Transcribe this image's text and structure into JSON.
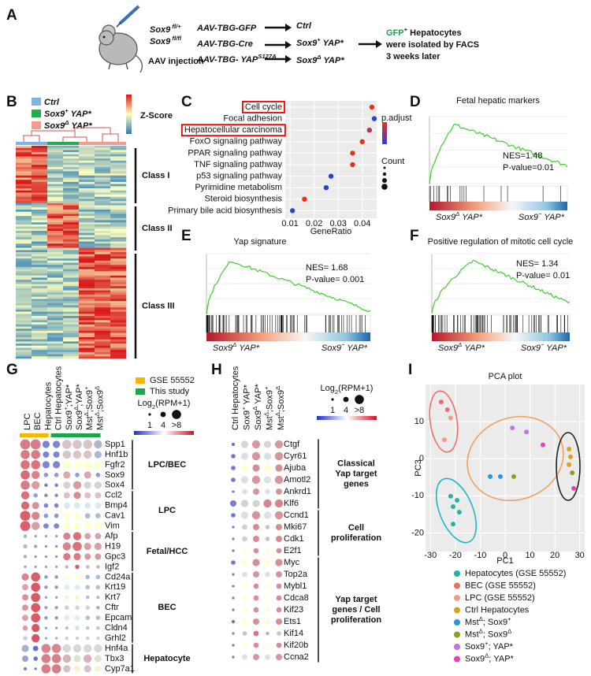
{
  "panel_a": {
    "label": "A",
    "genotypes": [
      [
        "Sox9",
        " fl/+"
      ],
      [
        "Sox9",
        " fl/fl"
      ]
    ],
    "injection": "AAV injection",
    "vectors": [
      [
        "AAV-TBG-GFP"
      ],
      [
        "AAV-TBG-Cre"
      ],
      [
        "AAV-TBG- YAP",
        "S127A"
      ]
    ],
    "groups": [
      [
        "Ctrl"
      ],
      [
        "Sox9",
        "+",
        " YAP*"
      ],
      [
        "Sox9",
        "Δ",
        " YAP*"
      ]
    ],
    "result": [
      [
        "GFP",
        "+",
        " Hepatocytes"
      ],
      [
        "were isolated by FACS"
      ],
      [
        "3 weeks later"
      ]
    ]
  },
  "panel_b": {
    "label": "B",
    "legend": [
      [
        "Ctrl"
      ],
      [
        "Sox9",
        "+",
        " YAP*"
      ],
      [
        "Sox9",
        "Δ",
        " YAP*"
      ]
    ],
    "legend_colors": [
      "#7fb2e5",
      "#1fae4b",
      "#f59a8e"
    ],
    "scale_title": "Z-Score",
    "classes": [
      "Class I",
      "Class II",
      "Class III"
    ]
  },
  "panel_c": {
    "label": "C",
    "type": "scatter",
    "categories": [
      "Cell cycle",
      "Focal adhesion",
      "Hepatocellular carcinoma",
      "FoxO signaling pathway",
      "PPAR signaling pathway",
      "TNF signaling pathway",
      "p53 signaling pathway",
      "Pyrimidine metabolism",
      "Steroid biosynthesis",
      "Primary bile acid biosynthesis"
    ],
    "values": [
      0.044,
      0.045,
      0.043,
      0.04,
      0.036,
      0.036,
      0.027,
      0.025,
      0.016,
      0.011
    ],
    "colors": [
      "#e8301c",
      "#2a3fe0",
      "#b5306e",
      "#e8301c",
      "#e8301c",
      "#e8301c",
      "#2a3fe0",
      "#2a3fe0",
      "#e8301c",
      "#2a3fe0"
    ],
    "highlighted": [
      0,
      2
    ],
    "x_label": "GeneRatio",
    "xlim": [
      0.008,
      0.046
    ],
    "xticks": [
      0.01,
      0.02,
      0.03,
      0.04
    ],
    "legend_titles": [
      "p.adjust",
      "Count"
    ]
  },
  "panel_d": {
    "label": "D",
    "title": "Fetal hepatic markers",
    "stats": [
      "NES=1.48",
      "P-value=0.01"
    ],
    "left": [
      "Sox9",
      "Δ",
      " YAP*"
    ],
    "right": [
      "Sox9",
      "−",
      " YAP*"
    ]
  },
  "panel_e": {
    "label": "E",
    "title": "Yap signature",
    "stats": [
      "NES= 1.68",
      "P-value= 0.001"
    ],
    "left": [
      "Sox9",
      "Δ",
      " YAP*"
    ],
    "right": [
      "Sox9",
      "−",
      " YAP*"
    ]
  },
  "panel_f": {
    "label": "F",
    "title": "Positive regulation of mitotic cell cycle",
    "stats": [
      "NES= 1.34",
      "P-value= 0.01"
    ],
    "left": [
      "Sox9",
      "Δ",
      " YAP*"
    ],
    "right": [
      "Sox9",
      "−",
      " YAP*"
    ]
  },
  "panel_g": {
    "label": "G",
    "columns": [
      [
        "LPC"
      ],
      [
        "BEC"
      ],
      [
        "Hepatocytes"
      ],
      [
        "Ctrl Hepatocytes"
      ],
      [
        "Sox9",
        "+",
        ";YAP*"
      ],
      [
        "Sox9",
        "Δ",
        ";YAP*"
      ],
      [
        "Mst",
        "Δ",
        ";Sox9",
        "+"
      ],
      [
        "Mst",
        "Δ",
        ";Sox9",
        "Δ"
      ]
    ],
    "column_groups": [
      {
        "name": "GSE 55552",
        "color": "#f5b800",
        "span": 3
      },
      {
        "name": "This study",
        "color": "#1aa64a",
        "span": 5
      }
    ],
    "genes": [
      "Spp1",
      "Hnf1b",
      "Fgfr2",
      "Sox9",
      "Sox4",
      "Ccl2",
      "Bmp4",
      "Cav1",
      "Vim",
      "Afp",
      "H19",
      "Gpc3",
      "Igf2",
      "Cd24a",
      "Krt19",
      "Krt7",
      "Cftr",
      "Epcam",
      "Cldn4",
      "Grhl2",
      "Hnf4a",
      "Tbx3",
      "Cyp7a1"
    ],
    "values": [
      [
        9,
        9,
        6,
        6,
        8,
        8,
        8,
        7
      ],
      [
        8,
        8,
        5,
        5,
        7,
        7,
        7,
        6
      ],
      [
        8,
        8,
        6,
        6,
        7,
        7,
        7,
        7
      ],
      [
        8,
        7,
        3,
        3,
        6,
        3,
        6,
        3
      ],
      [
        8,
        7,
        2,
        2,
        6,
        7,
        6,
        6
      ],
      [
        7,
        3,
        2,
        2,
        5,
        6,
        5,
        5
      ],
      [
        7,
        6,
        3,
        3,
        5,
        5,
        5,
        5
      ],
      [
        9,
        7,
        3,
        3,
        5,
        5,
        4,
        4
      ],
      [
        9,
        7,
        4,
        4,
        6,
        6,
        6,
        6
      ],
      [
        2,
        1,
        1,
        1,
        6,
        7,
        5,
        5
      ],
      [
        3,
        2,
        1,
        1,
        7,
        8,
        6,
        6
      ],
      [
        2,
        1,
        1,
        1,
        6,
        6,
        5,
        5
      ],
      [
        1,
        1,
        1,
        1,
        2,
        3,
        2,
        2
      ],
      [
        6,
        8,
        2,
        2,
        4,
        4,
        3,
        3
      ],
      [
        5,
        8,
        2,
        2,
        4,
        4,
        3,
        3
      ],
      [
        5,
        8,
        1,
        1,
        3,
        3,
        2,
        2
      ],
      [
        5,
        8,
        2,
        2,
        3,
        3,
        3,
        2
      ],
      [
        5,
        8,
        2,
        2,
        4,
        4,
        3,
        3
      ],
      [
        4,
        7,
        1,
        1,
        2,
        3,
        2,
        2
      ],
      [
        3,
        7,
        1,
        1,
        2,
        2,
        2,
        2
      ],
      [
        6,
        4,
        8,
        8,
        7,
        7,
        7,
        7
      ],
      [
        5,
        3,
        8,
        8,
        7,
        6,
        7,
        6
      ],
      [
        2,
        1,
        8,
        8,
        6,
        5,
        6,
        5
      ]
    ],
    "gene_groups": [
      {
        "name": [
          "LPC/BEC"
        ],
        "rows": [
          0,
          4
        ]
      },
      {
        "name": [
          "LPC"
        ],
        "rows": [
          5,
          8
        ]
      },
      {
        "name": [
          "Fetal/HCC"
        ],
        "rows": [
          9,
          12
        ]
      },
      {
        "name": [
          "BEC"
        ],
        "rows": [
          13,
          19
        ]
      },
      {
        "name": [
          "Hepatocyte"
        ],
        "rows": [
          20,
          22
        ]
      }
    ],
    "size_title": [
      "Log",
      "2",
      "(RPM+1)"
    ],
    "size_legend": [
      1,
      4,
      {
        "value": 8,
        "label": ">8"
      }
    ]
  },
  "panel_h": {
    "label": "H",
    "columns": [
      [
        "Ctrl Hepatocytes"
      ],
      [
        "Sox9",
        "+",
        " YAP*"
      ],
      [
        "Sox9",
        "Δ",
        " YAP*"
      ],
      [
        "Mst",
        "Δ",
        ";Sox9",
        "+"
      ],
      [
        "Mst",
        "Δ",
        ";Sox9",
        "Δ"
      ]
    ],
    "genes": [
      "Ctgf",
      "Cyr61",
      "Ajuba",
      "Amotl2",
      "Ankrd1",
      "Klf6",
      "Ccnd1",
      "Mki67",
      "Cdk1",
      "E2f1",
      "Myc",
      "Top2a",
      "Mybl1",
      "Cdca8",
      "Kif23",
      "Ets1",
      "Kif14",
      "Kif20b",
      "Ccna2"
    ],
    "values": [
      [
        2,
        6,
        7,
        6,
        7
      ],
      [
        3,
        6,
        7,
        6,
        7
      ],
      [
        3,
        5,
        6,
        5,
        6
      ],
      [
        3,
        6,
        7,
        6,
        7
      ],
      [
        1,
        4,
        5,
        4,
        5
      ],
      [
        5,
        6,
        6,
        7,
        7
      ],
      [
        3,
        6,
        7,
        6,
        7
      ],
      [
        1,
        4,
        5,
        3,
        5
      ],
      [
        1,
        4,
        5,
        3,
        5
      ],
      [
        1,
        3,
        4,
        3,
        4
      ],
      [
        3,
        5,
        6,
        5,
        6
      ],
      [
        1,
        4,
        5,
        4,
        5
      ],
      [
        1,
        3,
        4,
        3,
        4
      ],
      [
        1,
        3,
        4,
        3,
        4
      ],
      [
        1,
        3,
        4,
        3,
        4
      ],
      [
        2,
        4,
        5,
        4,
        5
      ],
      [
        1,
        3,
        4,
        2,
        3
      ],
      [
        1,
        3,
        4,
        3,
        4
      ],
      [
        1,
        4,
        5,
        4,
        5
      ]
    ],
    "gene_groups": [
      {
        "name": [
          "Classical",
          "Yap target",
          "genes"
        ],
        "rows": [
          0,
          5
        ]
      },
      {
        "name": [
          "Cell",
          "proliferation"
        ],
        "rows": [
          6,
          9
        ]
      },
      {
        "name": [
          "Yap target",
          "genes / Cell",
          "proliferation"
        ],
        "rows": [
          10,
          18
        ]
      }
    ],
    "size_title": [
      "Log",
      "2",
      "(RPM+1)"
    ],
    "size_legend": [
      1,
      4,
      {
        "value": 8,
        "label": ">8"
      }
    ]
  },
  "panel_i": {
    "label": "I",
    "type": "scatter",
    "title": "PCA plot",
    "x_label": "PC1",
    "y_label": "PC3",
    "xlim": [
      -32,
      32
    ],
    "ylim": [
      -25,
      20
    ],
    "xticks": [
      -30,
      -20,
      -10,
      0,
      10,
      20,
      30
    ],
    "yticks": [
      10,
      0,
      -10,
      -20
    ],
    "series": [
      {
        "name": [
          "Hepatocytes (GSE 55552)"
        ],
        "color": "#21b3a6",
        "x": [
          -21.9,
          -19.3,
          -20.9,
          -18.4,
          -20.9
        ],
        "y": [
          -10.1,
          -11.2,
          -12.9,
          -14.4,
          -17.6
        ]
      },
      {
        "name": [
          "BEC (GSE 55552)"
        ],
        "color": "#ec6f66",
        "x": [
          -25.7,
          -23.2
        ],
        "y": [
          15.3,
          13.2
        ]
      },
      {
        "name": [
          "LPC (GSE 55552)"
        ],
        "color": "#f29a86",
        "x": [
          -21.9,
          -24.4
        ],
        "y": [
          11.0,
          5.1
        ]
      },
      {
        "name": [
          "Ctrl Hepatocytes"
        ],
        "color": "#d9a21b",
        "x": [
          25.7,
          26.3,
          25.7
        ],
        "y": [
          2.6,
          0.5,
          -1.6
        ]
      },
      {
        "name": [
          "Mst",
          "Δ",
          "; Sox9",
          "+"
        ],
        "color": "#2b97d6",
        "x": [
          -6.0,
          -1.9
        ],
        "y": [
          -4.8,
          -4.8
        ]
      },
      {
        "name": [
          "Mst",
          "Δ",
          "; Sox9",
          "Δ"
        ],
        "color": "#87a02e",
        "x": [
          3.5,
          27.0
        ],
        "y": [
          -4.8,
          -3.8
        ]
      },
      {
        "name": [
          "Sox9",
          "+",
          "; YAP*"
        ],
        "color": "#c474e6",
        "x": [
          2.9,
          8.6
        ],
        "y": [
          8.3,
          7.2
        ]
      },
      {
        "name": [
          "Sox9",
          "Δ",
          "; YAP*"
        ],
        "color": "#e545b4",
        "x": [
          15.2,
          27.6
        ],
        "y": [
          3.7,
          -8.0
        ]
      }
    ]
  }
}
